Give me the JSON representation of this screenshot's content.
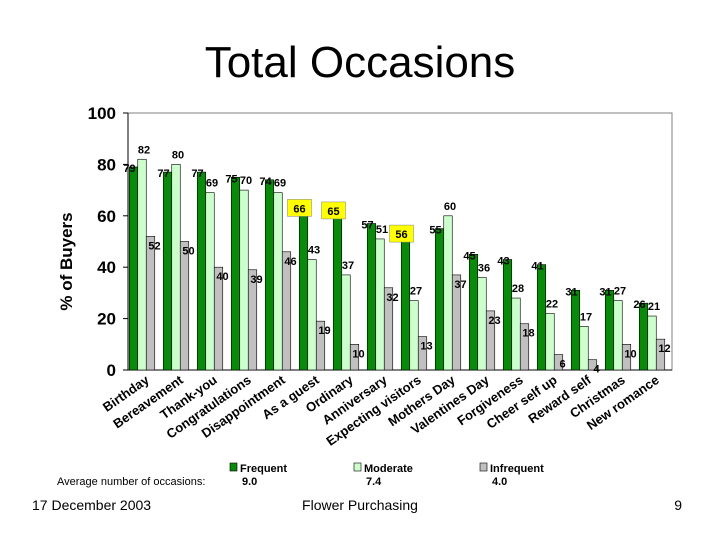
{
  "slide": {
    "title": "Total Occasions",
    "date": "17 December 2003",
    "subject": "Flower Purchasing",
    "page_number": "9"
  },
  "chart_data": {
    "type": "bar",
    "title": "Total Occasions",
    "ylabel": "% of Buyers",
    "xlabel": "",
    "ylim": [
      0,
      100
    ],
    "yticks": [
      0,
      20,
      40,
      60,
      80,
      100
    ],
    "grid": false,
    "legend_position": "bottom",
    "categories": [
      "Birthday",
      "Bereavement",
      "Thank-you",
      "Congratulations",
      "Disappointment",
      "As a guest",
      "Ordinary",
      "Anniversary",
      "Expecting visitors",
      "Mothers Day",
      "Valentines Day",
      "Forgiveness",
      "Cheer self up",
      "Reward self",
      "Christmas",
      "New romance"
    ],
    "series": [
      {
        "name": "Frequent",
        "avg": "9.0",
        "color": "#0a8a0a",
        "values": [
          79,
          77,
          77,
          75,
          74,
          66,
          65,
          57,
          56,
          55,
          45,
          43,
          41,
          31,
          31,
          26
        ]
      },
      {
        "name": "Moderate",
        "avg": "7.4",
        "color": "#ccffcc",
        "values": [
          82,
          80,
          69,
          70,
          69,
          43,
          37,
          51,
          27,
          60,
          36,
          28,
          22,
          17,
          27,
          21
        ]
      },
      {
        "name": "Infrequent",
        "avg": "4.0",
        "color": "#c0c0c0",
        "values": [
          52,
          50,
          40,
          39,
          46,
          19,
          10,
          32,
          13,
          37,
          23,
          18,
          6,
          4,
          10,
          12
        ]
      }
    ],
    "highlighted_labels": [
      "66",
      "65",
      "56"
    ],
    "highlight_color": "#ffff00",
    "legend_caption": "Average number of occasions:"
  }
}
